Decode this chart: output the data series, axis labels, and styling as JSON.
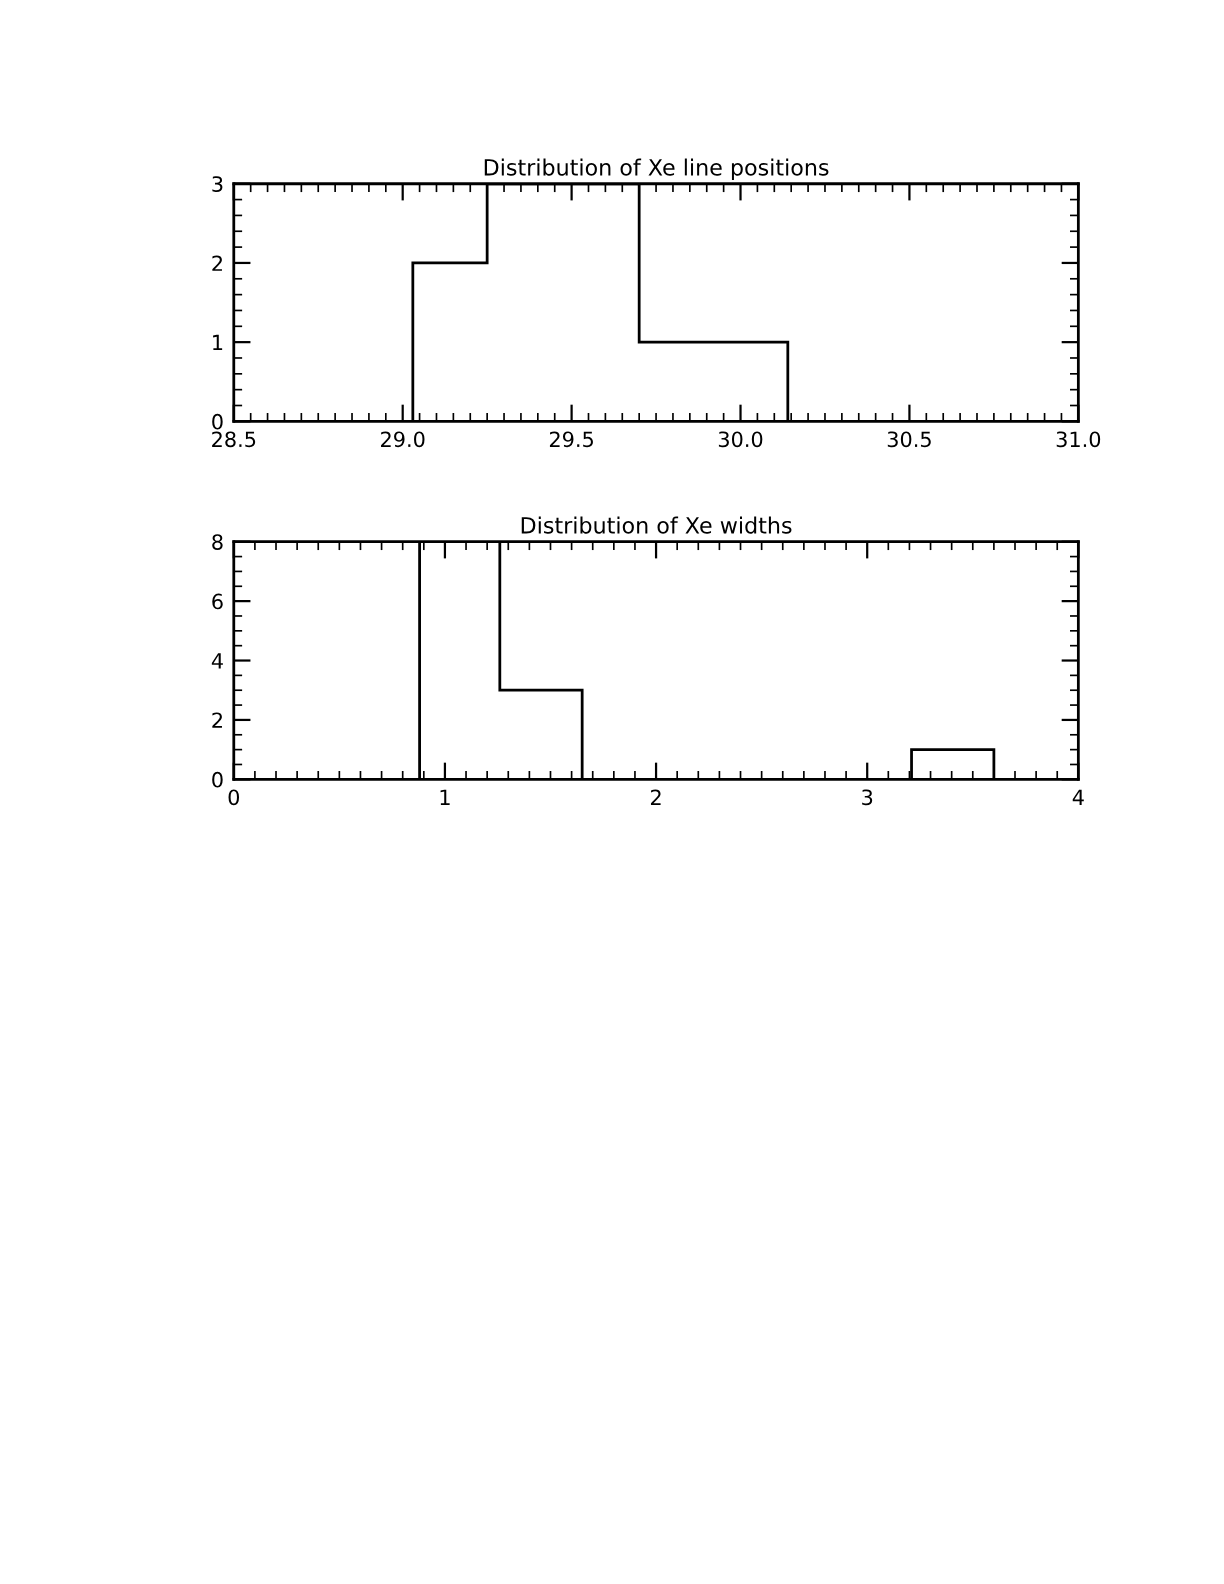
{
  "chart_data": [
    {
      "type": "histogram",
      "title": "Distribution of Xe line positions",
      "bins": [
        29.03,
        29.25,
        29.47,
        29.7,
        29.92,
        30.14
      ],
      "values": [
        2,
        3,
        3,
        1,
        1
      ],
      "color": "#000000",
      "xlim": [
        28.5,
        31.0
      ],
      "xticks": [
        {
          "value": 28.5,
          "label": "28.5"
        },
        {
          "value": 29.0,
          "label": "29.0"
        },
        {
          "value": 29.5,
          "label": "29.5"
        },
        {
          "value": 30.0,
          "label": "30.0"
        },
        {
          "value": 30.5,
          "label": "30.5"
        },
        {
          "value": 31.0,
          "label": "31.0"
        }
      ],
      "ylim": [
        0,
        3
      ],
      "yticks": [
        0,
        1,
        2,
        3
      ],
      "grid": false
    },
    {
      "type": "histogram",
      "title": "Distribution of Xe widths",
      "bins": [
        0.88,
        1.26,
        1.65,
        2.04,
        2.43,
        2.82,
        3.21,
        3.6
      ],
      "values": [
        8,
        3,
        0,
        0,
        0,
        0,
        1
      ],
      "color": "#000000",
      "xlim": [
        0,
        4
      ],
      "xticks": [
        0,
        1,
        2,
        3,
        4
      ],
      "ylim": [
        0,
        8
      ],
      "yticks": [
        0,
        2,
        4,
        6,
        8
      ],
      "grid": false
    }
  ]
}
